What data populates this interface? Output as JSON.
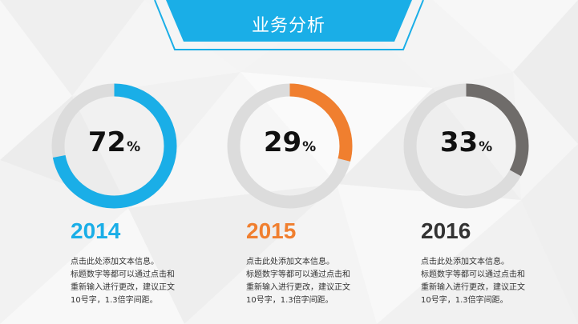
{
  "header": {
    "title": "业务分析"
  },
  "colors": {
    "accent_blue": "#1aaee7",
    "accent_orange": "#f07f2f",
    "accent_gray": "#6f6c6a",
    "track": "#dcdcdc"
  },
  "chart_data": [
    {
      "type": "pie",
      "variant": "donut",
      "category": "2014",
      "value": 72,
      "unit": "%",
      "color": "#1aaee7",
      "label_num": "72",
      "label_sym": "%",
      "description": [
        "点击此处添加文本信息。",
        "标题数字等都可以通过点击和",
        "重新输入进行更改，建议正文",
        "10号字，1.3倍字间距。"
      ]
    },
    {
      "type": "pie",
      "variant": "donut",
      "category": "2015",
      "value": 29,
      "unit": "%",
      "color": "#f07f2f",
      "label_num": "29",
      "label_sym": "%",
      "description": [
        "点击此处添加文本信息。",
        "标题数字等都可以通过点击和",
        "重新输入进行更改，建议正文",
        "10号字，1.3倍字间距。"
      ]
    },
    {
      "type": "pie",
      "variant": "donut",
      "category": "2016",
      "value": 33,
      "unit": "%",
      "color": "#6f6c6a",
      "label_num": "33",
      "label_sym": "%",
      "description": [
        "点击此处添加文本信息。",
        "标题数字等都可以通过点击和",
        "重新输入进行更改，建议正文",
        "10号字，1.3倍字间距。"
      ]
    }
  ]
}
